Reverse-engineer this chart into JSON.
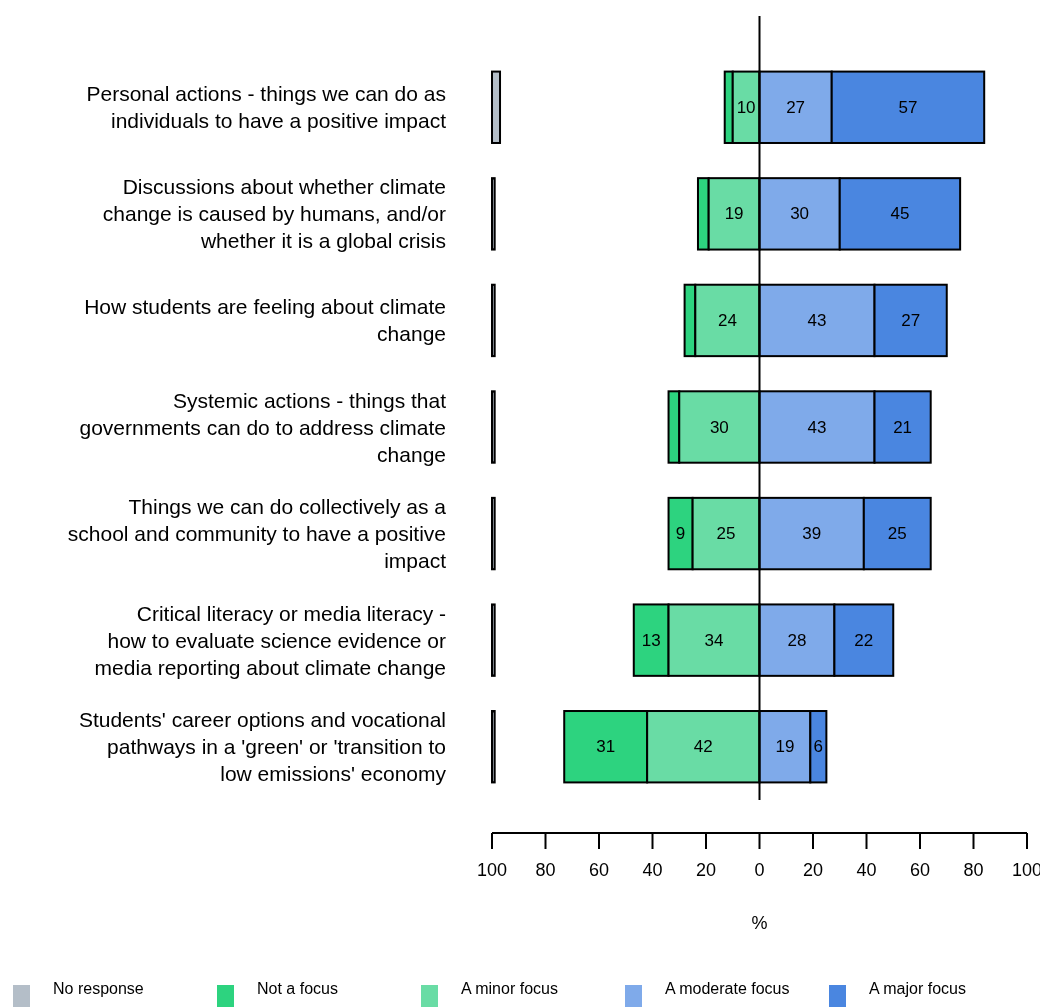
{
  "chart_data": {
    "type": "bar",
    "orientation": "horizontal",
    "categories": [
      "Personal actions - things we can do as individuals to have a positive impact",
      "Discussions about whether climate change is caused by humans, and/or whether it is a global crisis",
      "How students are feeling about climate change",
      "Systemic actions - things that governments can do to address climate change",
      "Things we can do collectively as a school and community to have a positive impact",
      "Critical literacy or media literacy - how to evaluate science evidence or media reporting about climate change",
      "Students' career options and vocational pathways in a 'green' or 'transition to low emissions' economy"
    ],
    "series": [
      {
        "name": "No response",
        "color": "#b4bec8",
        "values": [
          3,
          1,
          1,
          1,
          1,
          1,
          1
        ],
        "base": [
          -100,
          -100,
          -100,
          -100,
          -100,
          -100,
          -100
        ]
      },
      {
        "name": "Not a focus",
        "color": "#2dd37f",
        "values": [
          3,
          4,
          4,
          4,
          9,
          13,
          31
        ],
        "base": [
          -13,
          -23,
          -28,
          -34,
          -34,
          -47,
          -73
        ],
        "value_labels": [
          null,
          null,
          null,
          null,
          "9",
          "13",
          "31"
        ]
      },
      {
        "name": "A minor focus",
        "color": "#69dca5",
        "values": [
          10,
          19,
          24,
          30,
          25,
          34,
          42
        ],
        "base": [
          -10,
          -19,
          -24,
          -30,
          -25,
          -34,
          -42
        ],
        "value_labels": [
          "10",
          "19",
          "24",
          "30",
          "25",
          "34",
          "42"
        ]
      },
      {
        "name": "A moderate focus",
        "color": "#7faaea",
        "values": [
          27,
          30,
          43,
          43,
          39,
          28,
          19
        ],
        "base": [
          0,
          0,
          0,
          0,
          0,
          0,
          0
        ],
        "value_labels": [
          "27",
          "30",
          "43",
          "43",
          "39",
          "28",
          "19"
        ]
      },
      {
        "name": "A major focus",
        "color": "#4a86e0",
        "values": [
          57,
          45,
          27,
          21,
          25,
          22,
          6
        ],
        "base": [
          27,
          30,
          43,
          43,
          39,
          28,
          19
        ],
        "value_labels": [
          "57",
          "45",
          "27",
          "21",
          "25",
          "22",
          "6"
        ]
      }
    ],
    "xlim": [
      -100,
      100
    ],
    "xticks": [
      {
        "value": -100,
        "label": "100"
      },
      {
        "value": -80,
        "label": "80"
      },
      {
        "value": -60,
        "label": "60"
      },
      {
        "value": -40,
        "label": "40"
      },
      {
        "value": -20,
        "label": "20"
      },
      0,
      20,
      40,
      60,
      80,
      100
    ],
    "xlabel": "%",
    "ref_lines": [
      {
        "axis": "x",
        "value": 0
      }
    ],
    "grid": false,
    "legend": "bottom"
  }
}
